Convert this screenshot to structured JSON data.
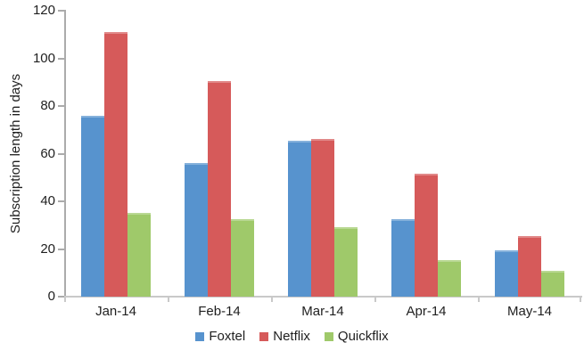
{
  "chart_data": {
    "type": "bar",
    "title": "",
    "xlabel": "",
    "ylabel": "Subscription length in days",
    "categories": [
      "Jan-14",
      "Feb-14",
      "Mar-14",
      "Apr-14",
      "May-14"
    ],
    "series": [
      {
        "name": "Foxtel",
        "color": "#5793CE",
        "values": [
          76,
          56,
          65.5,
          32.5,
          19.5
        ]
      },
      {
        "name": "Netflix",
        "color": "#D65A5A",
        "values": [
          111,
          90.5,
          66,
          51.5,
          25.5
        ]
      },
      {
        "name": "Quickflix",
        "color": "#9FC96A",
        "values": [
          35,
          32.5,
          29,
          15.5,
          11
        ]
      }
    ],
    "ylim": [
      0,
      120
    ],
    "ytick_step": 20,
    "yticks": [
      0,
      20,
      40,
      60,
      80,
      100,
      120
    ],
    "grid": false,
    "legend_position": "bottom"
  },
  "colors": {
    "background": "#FFFFFF",
    "text": "#1F1F1F",
    "y_axis_line": "#ABABAB",
    "x_axis_line": "#C9C9C9"
  }
}
